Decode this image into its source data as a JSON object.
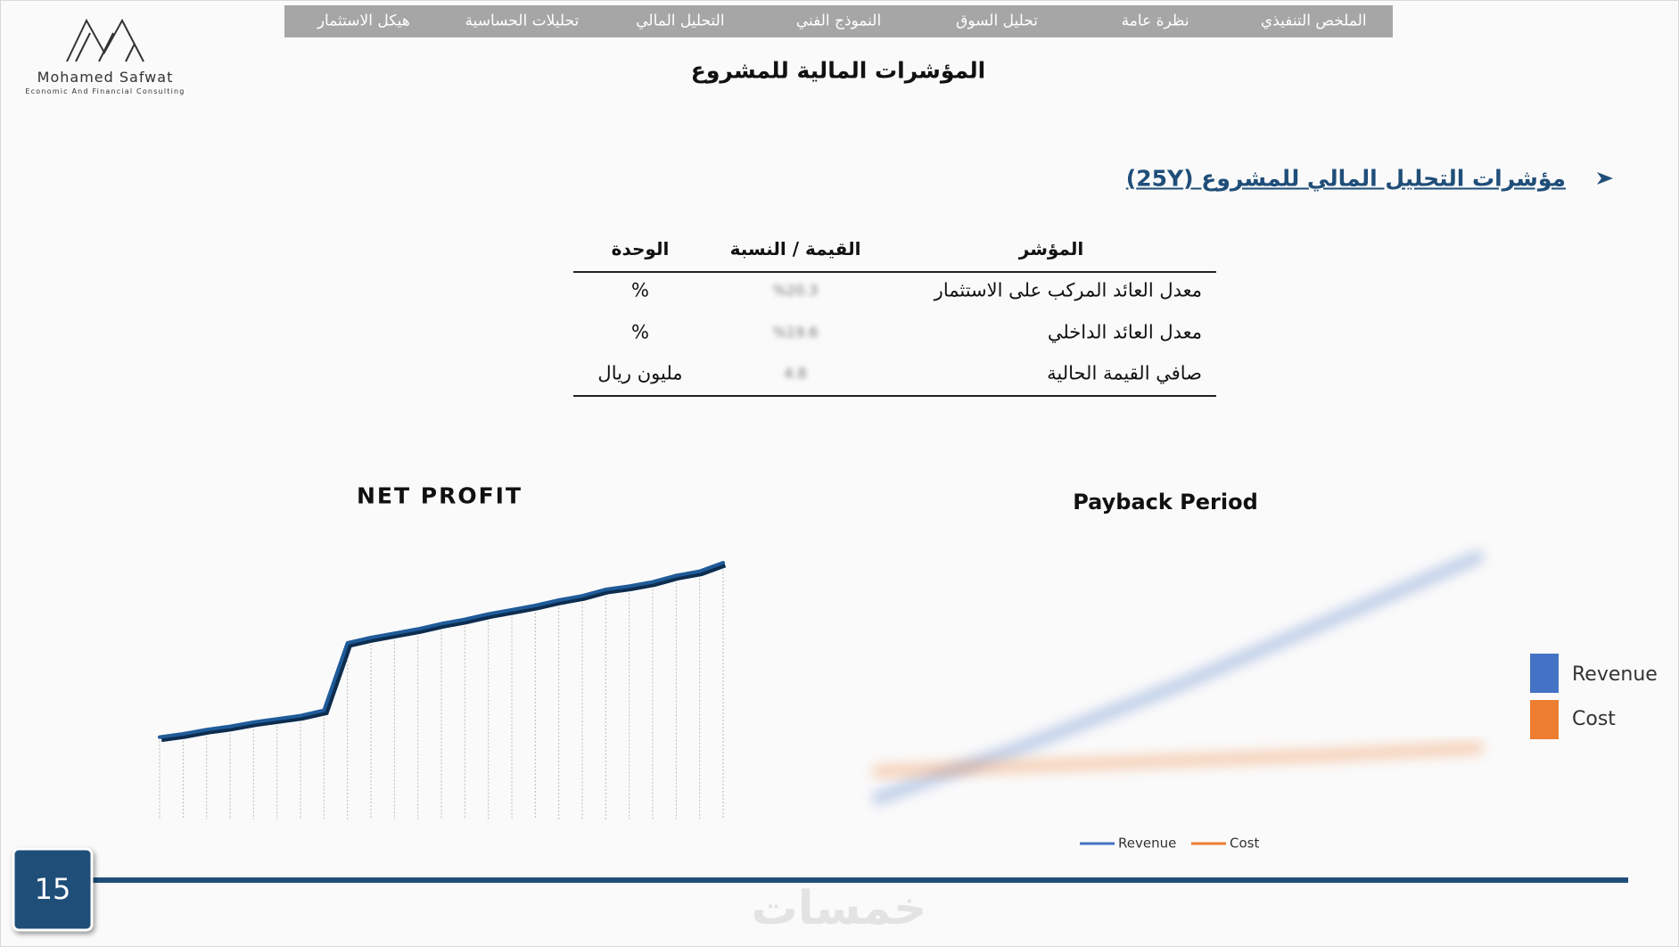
{
  "logo": {
    "name": "Mohamed Safwat",
    "tagline": "Economic And Financial Consulting"
  },
  "nav": [
    "الملخص التنفيذي",
    "نظرة عامة",
    "تحليل السوق",
    "النموذج الفني",
    "التحليل المالي",
    "تحليلات الحساسية",
    "هيكل الاستثمار"
  ],
  "title": "المؤشرات المالية للمشروع",
  "section_heading": "مؤشرات التحليل المالي للمشروع (25Y)",
  "table": {
    "columns": [
      "المؤشر",
      "القيمة / النسبة",
      "الوحدة"
    ],
    "rows": [
      [
        "معدل العائد المركب على الاستثمار",
        "%20.3",
        "%"
      ],
      [
        "معدل العائد الداخلي",
        "%19.6",
        "%"
      ],
      [
        "صافي القيمة الحالية",
        "4.8",
        "مليون ريال"
      ]
    ]
  },
  "chart_data": [
    {
      "type": "line",
      "title": "NET PROFIT",
      "color": "#1f5b99",
      "values": [
        77,
        80,
        84,
        87,
        91,
        94,
        97,
        102,
        165,
        170,
        174,
        178,
        183,
        187,
        192,
        196,
        200,
        205,
        209,
        215,
        218,
        222,
        228,
        232,
        240
      ],
      "ylim": [
        0,
        250
      ],
      "grid": true
    },
    {
      "type": "line",
      "title": "Payback Period",
      "legend": "bottom",
      "ylim": [
        0,
        250
      ],
      "series": [
        {
          "name": "Revenue",
          "color": "#4472c4",
          "values": [
            25,
            75,
            130,
            190,
            250
          ]
        },
        {
          "name": "Cost",
          "color": "#ed7d31",
          "values": [
            50,
            55,
            60,
            65,
            72
          ]
        }
      ]
    }
  ],
  "page_number": 15,
  "watermark": "خمسات"
}
